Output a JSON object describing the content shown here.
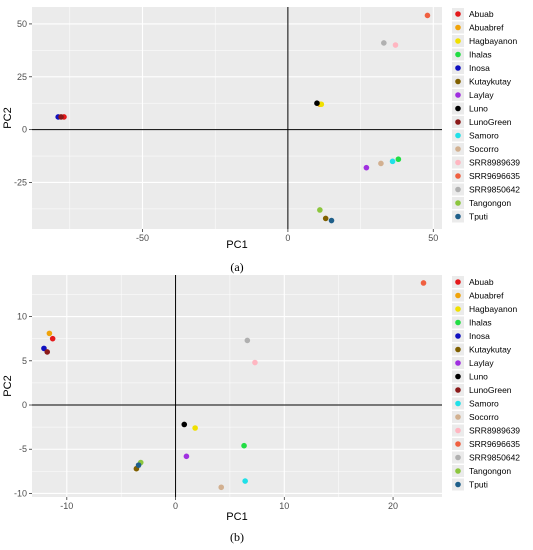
{
  "chart_data": [
    {
      "type": "scatter",
      "caption": "(a)",
      "xlabel": "PC1",
      "ylabel": "PC2",
      "xlim": [
        -88,
        53
      ],
      "ylim": [
        -47,
        58
      ],
      "xticks": [
        -50,
        0,
        50
      ],
      "yticks": [
        -25,
        0,
        25,
        50
      ],
      "xtick_labels": [
        "-50",
        "0",
        "50"
      ],
      "ytick_labels": [
        "-25",
        "0",
        "25",
        "50"
      ],
      "grid": true,
      "reference_lines": {
        "x": 0,
        "y": 0
      },
      "legend_placement": "right",
      "series": [
        {
          "name": "Abuab",
          "color": "#e41a1c",
          "points": [
            [
              -77,
              6
            ]
          ]
        },
        {
          "name": "Abuabref",
          "color": "#f0a30a",
          "points": [
            [
              11,
              12
            ]
          ]
        },
        {
          "name": "Hagbayanon",
          "color": "#f0e000",
          "points": [
            [
              11.5,
              12
            ]
          ]
        },
        {
          "name": "Ihalas",
          "color": "#22dd44",
          "points": [
            [
              38,
              -14
            ]
          ]
        },
        {
          "name": "Inosa",
          "color": "#1010c0",
          "points": [
            [
              -79,
              6
            ]
          ]
        },
        {
          "name": "Kutaykutay",
          "color": "#806000",
          "points": [
            [
              13,
              -42
            ]
          ]
        },
        {
          "name": "Laylay",
          "color": "#a030e0",
          "points": [
            [
              27,
              -18
            ]
          ]
        },
        {
          "name": "Luno",
          "color": "#000000",
          "points": [
            [
              10,
              12.5
            ]
          ]
        },
        {
          "name": "LunoGreen",
          "color": "#8b1a1a",
          "points": [
            [
              -78,
              6
            ]
          ]
        },
        {
          "name": "Samoro",
          "color": "#20e0e8",
          "points": [
            [
              36,
              -15
            ]
          ]
        },
        {
          "name": "Socorro",
          "color": "#d2b090",
          "points": [
            [
              32,
              -16
            ]
          ]
        },
        {
          "name": "SRR8989639",
          "color": "#ffb6c1",
          "points": [
            [
              37,
              40
            ]
          ]
        },
        {
          "name": "SRR9696635",
          "color": "#f06040",
          "points": [
            [
              48,
              54
            ]
          ]
        },
        {
          "name": "SRR9850642",
          "color": "#b0b0b0",
          "points": [
            [
              33,
              41
            ]
          ]
        },
        {
          "name": "Tangongon",
          "color": "#8cc63e",
          "points": [
            [
              11,
              -38
            ]
          ]
        },
        {
          "name": "Tputi",
          "color": "#1f5f8a",
          "points": [
            [
              15,
              -43
            ]
          ]
        }
      ]
    },
    {
      "type": "scatter",
      "caption": "(b)",
      "xlabel": "PC1",
      "ylabel": "PC2",
      "xlim": [
        -13.2,
        24.5
      ],
      "ylim": [
        -10.4,
        14.7
      ],
      "xticks": [
        -10,
        0,
        10,
        20
      ],
      "yticks": [
        -10,
        -5,
        0,
        5,
        10
      ],
      "xtick_labels": [
        "-10",
        "0",
        "10",
        "20"
      ],
      "ytick_labels": [
        "-10",
        "-5",
        "0",
        "5",
        "10"
      ],
      "grid": true,
      "reference_lines": {
        "x": 0,
        "y": 0
      },
      "legend_placement": "right",
      "series": [
        {
          "name": "Abuab",
          "color": "#e41a1c",
          "points": [
            [
              -11.3,
              7.5
            ]
          ]
        },
        {
          "name": "Abuabref",
          "color": "#f0a30a",
          "points": [
            [
              -11.6,
              8.1
            ]
          ]
        },
        {
          "name": "Hagbayanon",
          "color": "#f0e000",
          "points": [
            [
              1.8,
              -2.6
            ]
          ]
        },
        {
          "name": "Ihalas",
          "color": "#22dd44",
          "points": [
            [
              6.3,
              -4.6
            ]
          ]
        },
        {
          "name": "Inosa",
          "color": "#1010c0",
          "points": [
            [
              -12.1,
              6.4
            ]
          ]
        },
        {
          "name": "Kutaykutay",
          "color": "#806000",
          "points": [
            [
              -3.6,
              -7.2
            ]
          ]
        },
        {
          "name": "Laylay",
          "color": "#a030e0",
          "points": [
            [
              1.0,
              -5.8
            ]
          ]
        },
        {
          "name": "Luno",
          "color": "#000000",
          "points": [
            [
              0.8,
              -2.2
            ]
          ]
        },
        {
          "name": "LunoGreen",
          "color": "#8b1a1a",
          "points": [
            [
              -11.8,
              6.0
            ]
          ]
        },
        {
          "name": "Samoro",
          "color": "#20e0e8",
          "points": [
            [
              6.4,
              -8.6
            ]
          ]
        },
        {
          "name": "Socorro",
          "color": "#d2b090",
          "points": [
            [
              4.2,
              -9.3
            ]
          ]
        },
        {
          "name": "SRR8989639",
          "color": "#ffb6c1",
          "points": [
            [
              7.3,
              4.8
            ]
          ]
        },
        {
          "name": "SRR9696635",
          "color": "#f06040",
          "points": [
            [
              22.8,
              13.8
            ]
          ]
        },
        {
          "name": "SRR9850642",
          "color": "#b0b0b0",
          "points": [
            [
              6.6,
              7.3
            ]
          ]
        },
        {
          "name": "Tangongon",
          "color": "#8cc63e",
          "points": [
            [
              -3.2,
              -6.5
            ]
          ]
        },
        {
          "name": "Tputi",
          "color": "#1f5f8a",
          "points": [
            [
              -3.4,
              -6.8
            ]
          ]
        }
      ]
    }
  ]
}
